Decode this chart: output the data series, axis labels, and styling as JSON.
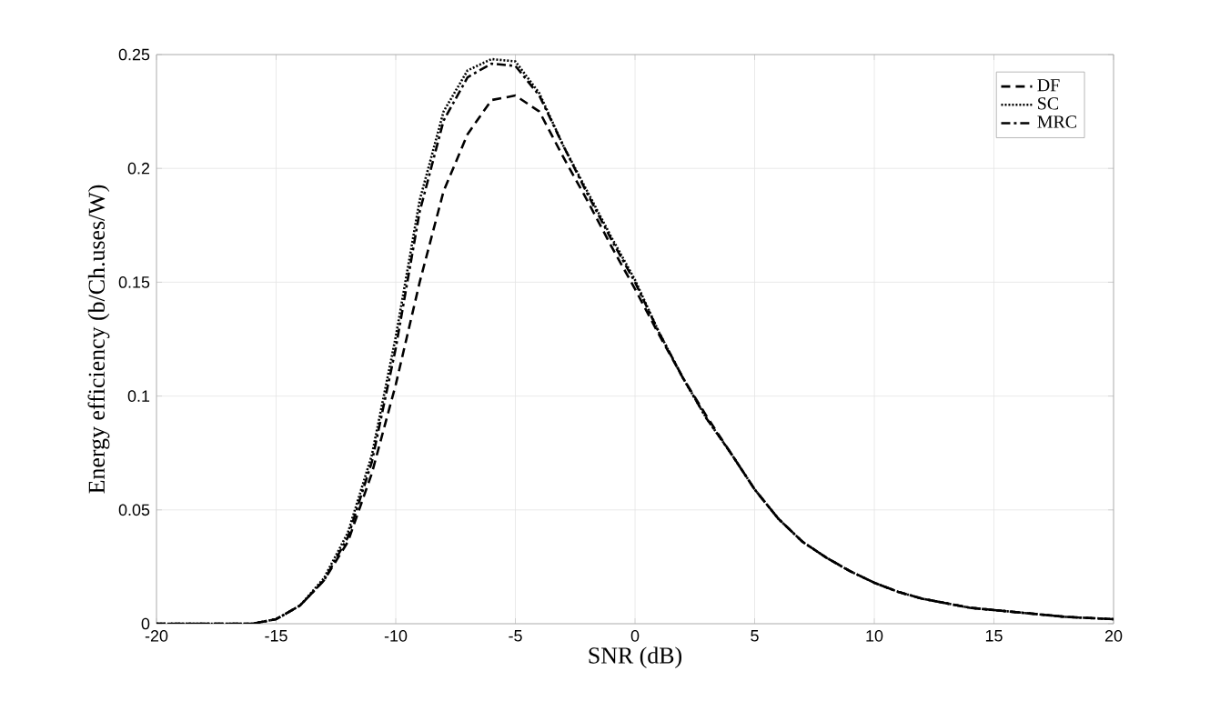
{
  "chart_data": {
    "type": "line",
    "xlabel": "SNR (dB)",
    "ylabel": "Energy efficiency (b/Ch.uses/W)",
    "x": [
      -20,
      -19,
      -18,
      -17,
      -16,
      -15,
      -14,
      -13,
      -12,
      -11,
      -10,
      -9,
      -8,
      -7,
      -6,
      -5,
      -4,
      -3,
      -2,
      -1,
      0,
      1,
      2,
      3,
      4,
      5,
      6,
      7,
      8,
      9,
      10,
      11,
      12,
      13,
      14,
      15,
      16,
      17,
      18,
      19,
      20
    ],
    "series": [
      {
        "name": "DF",
        "color": "#000000",
        "line_style": "dashed",
        "values": [
          0,
          0,
          0,
          0,
          0,
          0.002,
          0.008,
          0.019,
          0.036,
          0.066,
          0.105,
          0.15,
          0.19,
          0.215,
          0.23,
          0.232,
          0.225,
          0.205,
          0.186,
          0.166,
          0.147,
          0.127,
          0.108,
          0.091,
          0.075,
          0.059,
          0.046,
          0.036,
          0.029,
          0.023,
          0.018,
          0.014,
          0.011,
          0.009,
          0.007,
          0.006,
          0.005,
          0.004,
          0.003,
          0.0025,
          0.002
        ]
      },
      {
        "name": "SC",
        "color": "#000000",
        "line_style": "dotted",
        "values": [
          0,
          0,
          0,
          0,
          0,
          0.002,
          0.008,
          0.02,
          0.04,
          0.074,
          0.126,
          0.186,
          0.225,
          0.243,
          0.248,
          0.247,
          0.233,
          0.21,
          0.19,
          0.17,
          0.151,
          0.128,
          0.108,
          0.09,
          0.075,
          0.059,
          0.046,
          0.036,
          0.029,
          0.023,
          0.018,
          0.014,
          0.011,
          0.009,
          0.007,
          0.006,
          0.005,
          0.004,
          0.003,
          0.0025,
          0.002
        ]
      },
      {
        "name": "MRC",
        "color": "#000000",
        "line_style": "dashdot",
        "values": [
          0,
          0,
          0,
          0,
          0,
          0.002,
          0.008,
          0.019,
          0.038,
          0.071,
          0.121,
          0.181,
          0.221,
          0.24,
          0.246,
          0.245,
          0.232,
          0.21,
          0.189,
          0.169,
          0.15,
          0.128,
          0.108,
          0.09,
          0.075,
          0.059,
          0.046,
          0.036,
          0.029,
          0.023,
          0.018,
          0.014,
          0.011,
          0.009,
          0.007,
          0.006,
          0.005,
          0.004,
          0.003,
          0.0025,
          0.002
        ]
      }
    ],
    "xlim": [
      -20,
      20
    ],
    "ylim": [
      0,
      0.25
    ],
    "xticks": [
      -20,
      -15,
      -10,
      -5,
      0,
      5,
      10,
      15,
      20
    ],
    "yticks": [
      0,
      0.05,
      0.1,
      0.15,
      0.2,
      0.25
    ],
    "grid": true,
    "legend": "top right"
  }
}
